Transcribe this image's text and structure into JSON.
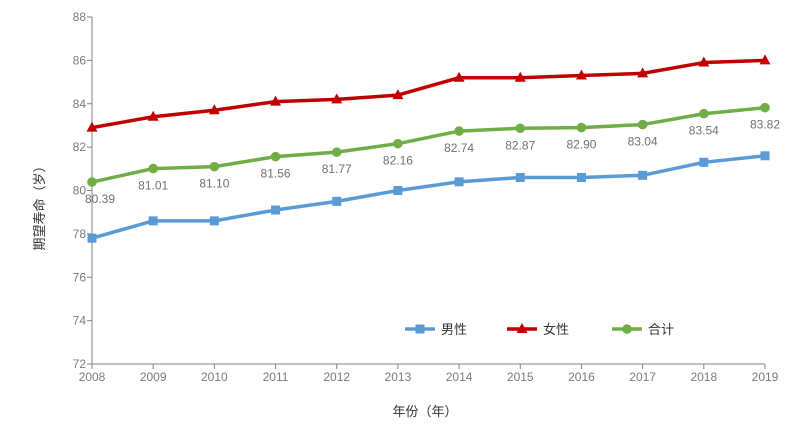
{
  "chart_data": {
    "type": "line",
    "xlabel": "年份（年）",
    "ylabel": "期望寿命（岁）",
    "categories": [
      "2008",
      "2009",
      "2010",
      "2011",
      "2012",
      "2013",
      "2014",
      "2015",
      "2016",
      "2017",
      "2018",
      "2019"
    ],
    "ylim": [
      72,
      88
    ],
    "yticks": [
      "72",
      "74",
      "76",
      "78",
      "80",
      "82",
      "84",
      "86",
      "88"
    ],
    "grid": false,
    "legend_position": "bottom-right",
    "series": [
      {
        "name": "男性",
        "color": "#5b9bd5",
        "marker": "square",
        "values": [
          77.8,
          78.6,
          78.6,
          79.1,
          79.5,
          80.0,
          80.4,
          80.6,
          80.6,
          80.7,
          81.3,
          81.6
        ]
      },
      {
        "name": "女性",
        "color": "#c00000",
        "marker": "triangle",
        "values": [
          82.9,
          83.4,
          83.7,
          84.1,
          84.2,
          84.4,
          85.2,
          85.2,
          85.3,
          85.4,
          85.9,
          86.0
        ]
      },
      {
        "name": "合计",
        "color": "#70ad47",
        "marker": "circle",
        "values": [
          80.39,
          81.01,
          81.1,
          81.56,
          81.77,
          82.16,
          82.74,
          82.87,
          82.9,
          83.04,
          83.54,
          83.82
        ],
        "labels": [
          "80.39",
          "81.01",
          "81.10",
          "81.56",
          "81.77",
          "82.16",
          "82.74",
          "82.87",
          "82.90",
          "83.04",
          "83.54",
          "83.82"
        ]
      }
    ]
  }
}
